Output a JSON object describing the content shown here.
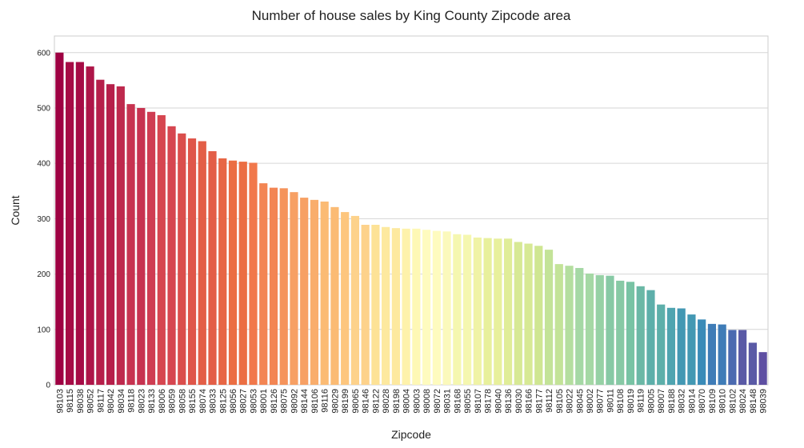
{
  "chart_data": {
    "type": "bar",
    "title": "Number of house sales by King County Zipcode area",
    "xlabel": "Zipcode",
    "ylabel": "Count",
    "ylim": [
      0,
      630
    ],
    "yticks": [
      0,
      100,
      200,
      300,
      400,
      500,
      600
    ],
    "grid": "horizontal",
    "palette": "Spectral",
    "categories": [
      "98103",
      "98115",
      "98038",
      "98052",
      "98117",
      "98042",
      "98034",
      "98118",
      "98023",
      "98133",
      "98006",
      "98059",
      "98058",
      "98155",
      "98074",
      "98033",
      "98125",
      "98056",
      "98027",
      "98053",
      "98001",
      "98126",
      "98075",
      "98092",
      "98144",
      "98106",
      "98116",
      "98029",
      "98199",
      "98065",
      "98146",
      "98122",
      "98028",
      "98198",
      "98004",
      "98003",
      "98008",
      "98072",
      "98031",
      "98168",
      "98055",
      "98107",
      "98178",
      "98040",
      "98136",
      "98030",
      "98166",
      "98177",
      "98112",
      "98105",
      "98022",
      "98045",
      "98002",
      "98077",
      "98011",
      "98108",
      "98019",
      "98119",
      "98005",
      "98007",
      "98188",
      "98032",
      "98014",
      "98070",
      "98109",
      "98010",
      "98102",
      "98024",
      "98148",
      "98039"
    ],
    "values": [
      600,
      583,
      583,
      575,
      551,
      543,
      539,
      507,
      500,
      493,
      487,
      467,
      454,
      445,
      440,
      422,
      409,
      405,
      403,
      401,
      364,
      356,
      355,
      348,
      338,
      334,
      331,
      321,
      312,
      305,
      289,
      289,
      285,
      283,
      282,
      282,
      280,
      278,
      277,
      272,
      271,
      266,
      265,
      264,
      264,
      258,
      255,
      251,
      244,
      218,
      215,
      211,
      201,
      198,
      197,
      188,
      186,
      178,
      171,
      145,
      139,
      138,
      127,
      118,
      110,
      109,
      99,
      99,
      76,
      59
    ],
    "colors": [
      "#9e0142",
      "#a60b45",
      "#ae1548",
      "#b61f4a",
      "#be294d",
      "#c73350",
      "#cf3d52",
      "#d64650",
      "#da4e4c",
      "#df564a",
      "#e35e47",
      "#e76645",
      "#eb6e43",
      "#f1784b",
      "#f38553",
      "#f5935b",
      "#f7a064",
      "#f9ad6c",
      "#fbbb74",
      "#fdc67e",
      "#fdd28b",
      "#fde296",
      "#fde99f",
      "#fef2ab",
      "#fef8b5",
      "#fefbbf",
      "#fbf9bc",
      "#f5f7b0",
      "#f0f3a6",
      "#e8f09c",
      "#e0ed98",
      "#d7e995",
      "#cfe692",
      "#c3e398",
      "#b4de9f",
      "#a5d8a5",
      "#96d1a5",
      "#87c9a5",
      "#78c3a4",
      "#6bb8a6",
      "#5dafaa",
      "#4fa4b0",
      "#4398b3",
      "#3a8bb8",
      "#3f7cb7",
      "#4b6ab0",
      "#5a5aa6",
      "#5e4fa2"
    ]
  }
}
